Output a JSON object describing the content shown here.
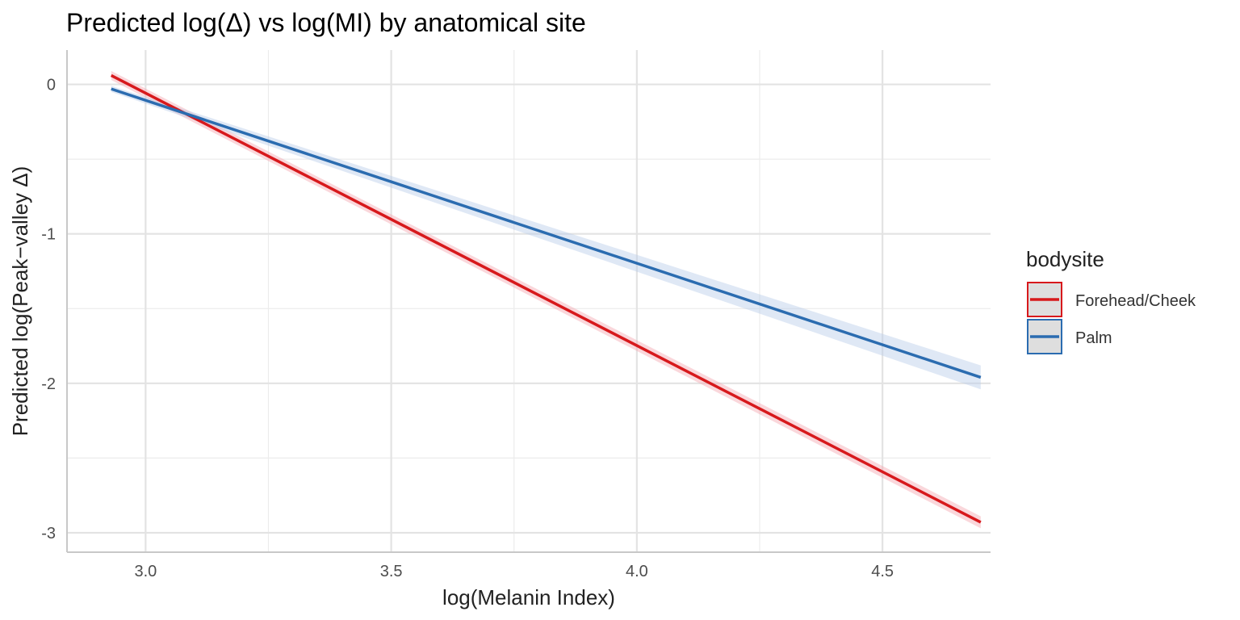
{
  "chart_data": {
    "type": "line",
    "title": "Predicted log(Δ) vs log(MI) by anatomical site",
    "xlabel": "log(Melanin Index)",
    "ylabel": "Predicted log(Peak−valley Δ)",
    "xlim": [
      2.84,
      4.72
    ],
    "ylim": [
      -3.13,
      0.23
    ],
    "x_ticks": [
      3.0,
      3.5,
      4.0,
      4.5
    ],
    "x_tick_labels": [
      "3.0",
      "3.5",
      "4.0",
      "4.5"
    ],
    "y_ticks": [
      0,
      -1,
      -2,
      -3
    ],
    "y_tick_labels": [
      "0",
      "-1",
      "-2",
      "-3"
    ],
    "grid": true,
    "legend": {
      "title": "bodysite",
      "position": "right"
    },
    "series": [
      {
        "name": "Forehead/Cheek",
        "color": "#d7191c",
        "band_color": "#f4a6b0",
        "x": [
          2.93,
          4.7
        ],
        "y": [
          0.06,
          -2.93
        ],
        "ci_low": [
          0.03,
          -2.97
        ],
        "ci_high": [
          0.09,
          -2.89
        ]
      },
      {
        "name": "Palm",
        "color": "#2b6cb0",
        "band_color": "#b8cde8",
        "x": [
          2.93,
          4.7
        ],
        "y": [
          -0.03,
          -1.96
        ],
        "ci_low": [
          -0.05,
          -2.04
        ],
        "ci_high": [
          -0.01,
          -1.88
        ]
      }
    ]
  }
}
